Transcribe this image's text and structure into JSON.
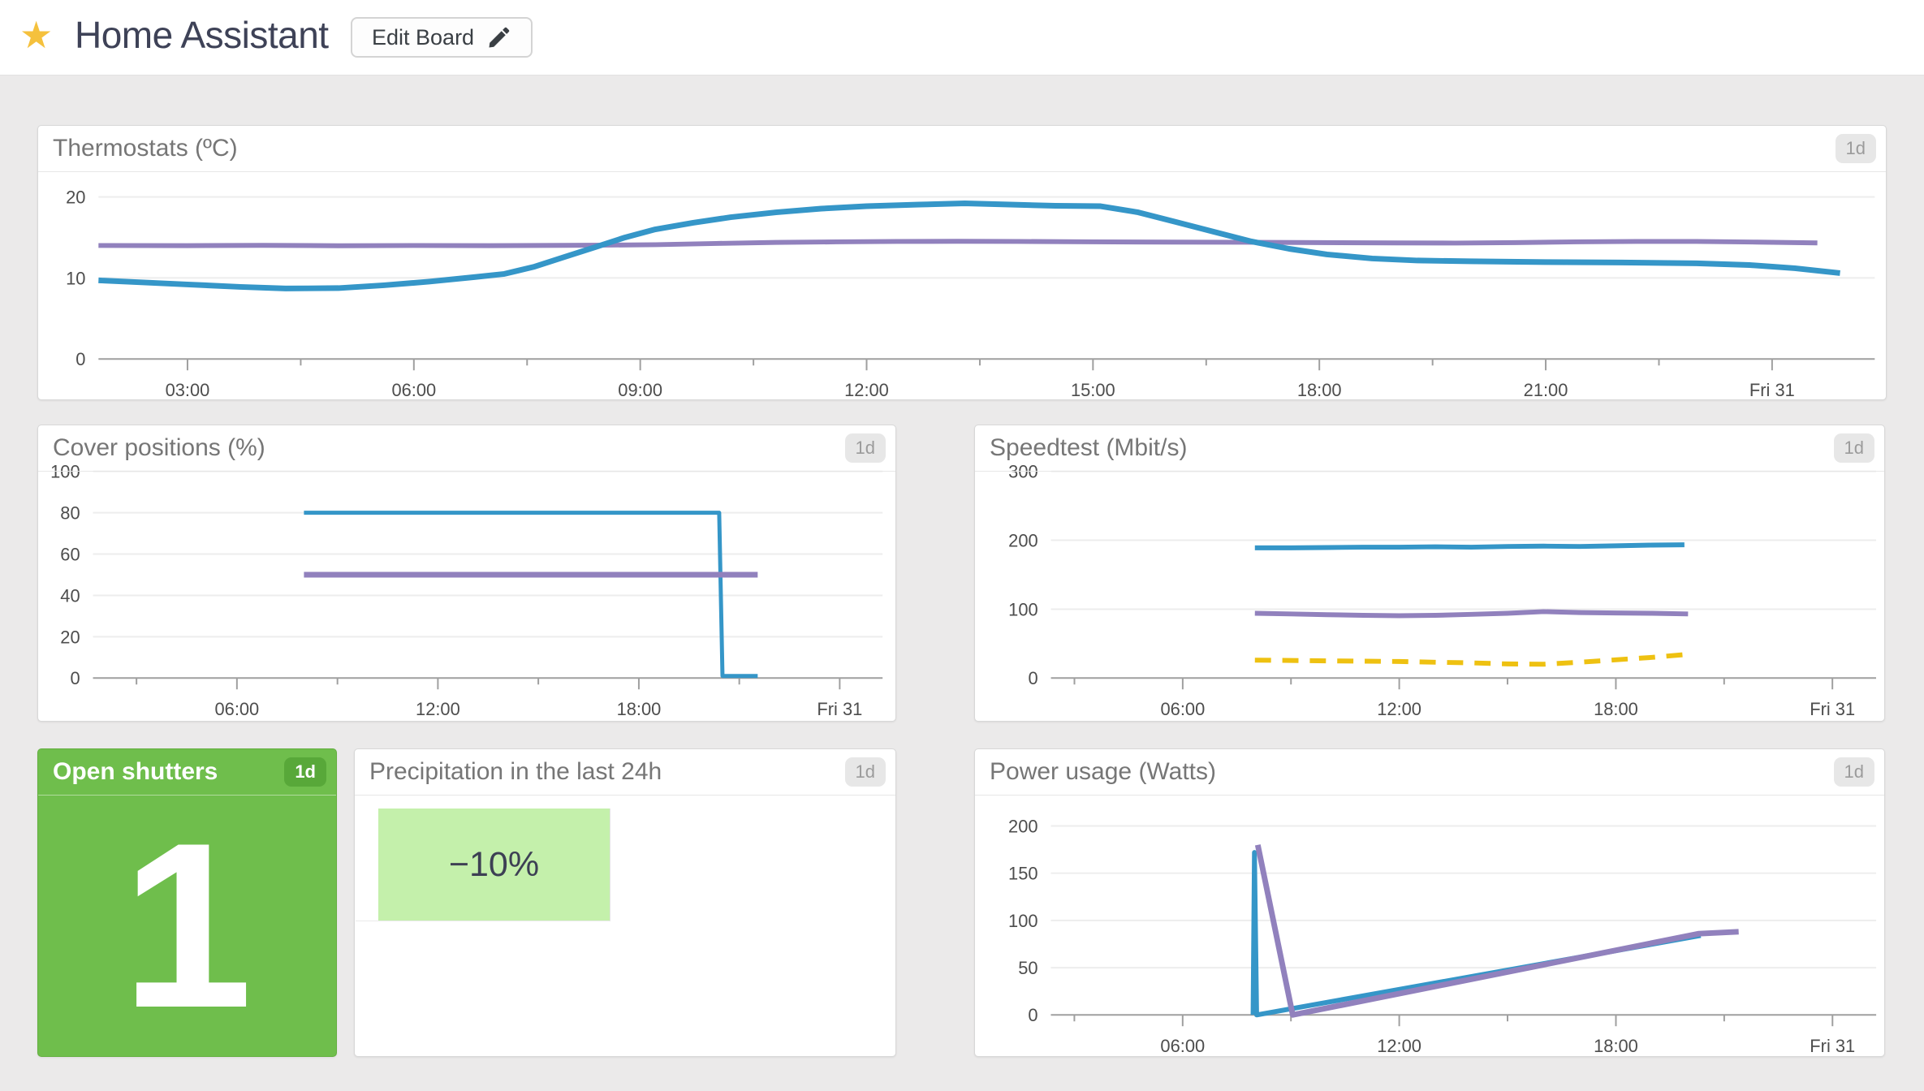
{
  "colors": {
    "blue": "#3596c8",
    "purple": "#9181bd",
    "yellow": "#eec111",
    "tile_green": "#6fbe4c",
    "cell_green": "#c4f0ab",
    "star_gold": "#f5c13d"
  },
  "header": {
    "title": "Home Assistant",
    "edit_label": "Edit Board",
    "star_icon": "★"
  },
  "panels": {
    "thermostats": {
      "title": "Thermostats (ºC)",
      "range_badge": "1d",
      "chart": {
        "type": "line",
        "x_range": [
          1.82,
          25.36
        ],
        "y_range": [
          0,
          21.4
        ],
        "y_ticks": [
          {
            "v": 0,
            "label": "0"
          },
          {
            "v": 10,
            "label": "10"
          },
          {
            "v": 20,
            "label": "20"
          }
        ],
        "x_ticks": [
          {
            "h": 3,
            "label": "03:00"
          },
          {
            "h": 6,
            "label": "06:00"
          },
          {
            "h": 9,
            "label": "09:00"
          },
          {
            "h": 12,
            "label": "12:00"
          },
          {
            "h": 15,
            "label": "15:00"
          },
          {
            "h": 18,
            "label": "18:00"
          },
          {
            "h": 21,
            "label": "21:00"
          },
          {
            "h": 24,
            "label": "Fri 31"
          }
        ],
        "x_minor": [
          4.5,
          7.5,
          10.5,
          13.5,
          16.5,
          19.5,
          22.5
        ],
        "series": [
          {
            "name": "thermostat-setpoint",
            "color": "#9181bd",
            "width": 6,
            "points": [
              [
                1.82,
                14.0
              ],
              [
                3,
                13.98
              ],
              [
                4,
                14.02
              ],
              [
                5,
                13.97
              ],
              [
                6,
                14.0
              ],
              [
                7,
                13.98
              ],
              [
                8,
                14.02
              ],
              [
                8.6,
                14.05
              ],
              [
                9.2,
                14.1
              ],
              [
                10,
                14.25
              ],
              [
                10.8,
                14.38
              ],
              [
                11.6,
                14.45
              ],
              [
                12.4,
                14.5
              ],
              [
                13.2,
                14.52
              ],
              [
                14,
                14.5
              ],
              [
                15,
                14.45
              ],
              [
                16,
                14.42
              ],
              [
                17,
                14.4
              ],
              [
                18,
                14.36
              ],
              [
                19,
                14.32
              ],
              [
                19.8,
                14.3
              ],
              [
                20.6,
                14.36
              ],
              [
                21.4,
                14.45
              ],
              [
                22.2,
                14.5
              ],
              [
                23,
                14.5
              ],
              [
                23.8,
                14.42
              ],
              [
                24.6,
                14.32
              ]
            ]
          },
          {
            "name": "temperature",
            "color": "#3596c8",
            "width": 7,
            "points": [
              [
                1.82,
                9.7
              ],
              [
                2.3,
                9.5
              ],
              [
                3,
                9.2
              ],
              [
                3.7,
                8.9
              ],
              [
                4.3,
                8.7
              ],
              [
                5,
                8.75
              ],
              [
                5.6,
                9.1
              ],
              [
                6.2,
                9.55
              ],
              [
                6.8,
                10.1
              ],
              [
                7.2,
                10.5
              ],
              [
                7.6,
                11.4
              ],
              [
                8,
                12.6
              ],
              [
                8.4,
                13.8
              ],
              [
                8.8,
                15.0
              ],
              [
                9.2,
                16.0
              ],
              [
                9.7,
                16.8
              ],
              [
                10.2,
                17.5
              ],
              [
                10.8,
                18.1
              ],
              [
                11.4,
                18.55
              ],
              [
                12,
                18.85
              ],
              [
                12.7,
                19.05
              ],
              [
                13.3,
                19.2
              ],
              [
                13.9,
                19.05
              ],
              [
                14.5,
                18.9
              ],
              [
                15.1,
                18.85
              ],
              [
                15.6,
                18.1
              ],
              [
                16.1,
                16.9
              ],
              [
                16.6,
                15.7
              ],
              [
                17.1,
                14.5
              ],
              [
                17.6,
                13.6
              ],
              [
                18.1,
                12.9
              ],
              [
                18.7,
                12.4
              ],
              [
                19.3,
                12.15
              ],
              [
                20,
                12.05
              ],
              [
                21,
                11.95
              ],
              [
                22,
                11.9
              ],
              [
                23,
                11.8
              ],
              [
                23.7,
                11.6
              ],
              [
                24.3,
                11.2
              ],
              [
                24.9,
                10.6
              ]
            ]
          }
        ]
      }
    },
    "cover": {
      "title": "Cover positions (%)",
      "range_badge": "1d",
      "chart": {
        "type": "line",
        "x_range": [
          1.7,
          25.28
        ],
        "y_range": [
          0,
          100
        ],
        "y_ticks": [
          {
            "v": 0,
            "label": "0"
          },
          {
            "v": 20,
            "label": "20"
          },
          {
            "v": 40,
            "label": "40"
          },
          {
            "v": 60,
            "label": "60"
          },
          {
            "v": 80,
            "label": "80"
          },
          {
            "v": 100,
            "label": "100"
          }
        ],
        "x_ticks": [
          {
            "h": 6,
            "label": "06:00"
          },
          {
            "h": 12,
            "label": "12:00"
          },
          {
            "h": 18,
            "label": "18:00"
          },
          {
            "h": 24,
            "label": "Fri 31"
          }
        ],
        "x_minor": [
          3,
          9,
          15,
          21
        ],
        "series": [
          {
            "name": "cover-living-room",
            "color": "#3596c8",
            "width": 5,
            "points": [
              [
                8,
                80
              ],
              [
                20.4,
                80
              ],
              [
                20.5,
                1
              ],
              [
                21.55,
                1
              ]
            ]
          },
          {
            "name": "cover-bedroom",
            "color": "#9181bd",
            "width": 7,
            "points": [
              [
                8,
                50
              ],
              [
                21.55,
                50
              ]
            ]
          }
        ]
      }
    },
    "speedtest": {
      "title": "Speedtest (Mbit/s)",
      "range_badge": "1d",
      "chart": {
        "type": "line",
        "x_range": [
          2.35,
          25.21
        ],
        "y_range": [
          0,
          300
        ],
        "y_ticks": [
          {
            "v": 0,
            "label": "0"
          },
          {
            "v": 100,
            "label": "100"
          },
          {
            "v": 200,
            "label": "200"
          },
          {
            "v": 300,
            "label": "300"
          }
        ],
        "x_ticks": [
          {
            "h": 6,
            "label": "06:00"
          },
          {
            "h": 12,
            "label": "12:00"
          },
          {
            "h": 18,
            "label": "18:00"
          },
          {
            "h": 24,
            "label": "Fri 31"
          }
        ],
        "x_minor": [
          3,
          9,
          15,
          21
        ],
        "series": [
          {
            "name": "download",
            "color": "#3596c8",
            "width": 6,
            "points": [
              [
                8,
                189
              ],
              [
                9,
                189
              ],
              [
                10,
                189.5
              ],
              [
                11,
                190
              ],
              [
                12,
                190
              ],
              [
                13,
                190.5
              ],
              [
                14,
                190
              ],
              [
                15,
                191
              ],
              [
                16,
                191.5
              ],
              [
                17,
                191
              ],
              [
                18,
                192
              ],
              [
                19,
                193
              ],
              [
                19.9,
                193.5
              ]
            ]
          },
          {
            "name": "upload",
            "color": "#9181bd",
            "width": 6,
            "points": [
              [
                8,
                94
              ],
              [
                9,
                93
              ],
              [
                10,
                92
              ],
              [
                11,
                91
              ],
              [
                12,
                90.5
              ],
              [
                13,
                91
              ],
              [
                14,
                92.5
              ],
              [
                15,
                94
              ],
              [
                16,
                96.5
              ],
              [
                17,
                95
              ],
              [
                18,
                94.5
              ],
              [
                19,
                94
              ],
              [
                20,
                93
              ]
            ]
          },
          {
            "name": "ping",
            "color": "#eec111",
            "width": 6,
            "dash": "20 14",
            "points": [
              [
                8,
                26
              ],
              [
                9,
                25.5
              ],
              [
                10,
                25
              ],
              [
                11,
                24.5
              ],
              [
                12,
                24
              ],
              [
                13,
                23
              ],
              [
                14,
                22
              ],
              [
                15,
                20.5
              ],
              [
                16,
                20
              ],
              [
                17,
                23
              ],
              [
                18,
                26.5
              ],
              [
                19,
                30
              ],
              [
                20,
                34.5
              ]
            ]
          }
        ]
      }
    },
    "shutters": {
      "title": "Open shutters",
      "range_badge": "1d",
      "value": "1"
    },
    "precipitation": {
      "title": "Precipitation in the last 24h",
      "range_badge": "1d",
      "value": "−10%"
    },
    "power": {
      "title": "Power usage (Watts)",
      "range_badge": "1d",
      "chart": {
        "type": "line",
        "x_range": [
          2.35,
          25.21
        ],
        "y_range": [
          0,
          206
        ],
        "y_ticks": [
          {
            "v": 0,
            "label": "0"
          },
          {
            "v": 50,
            "label": "50"
          },
          {
            "v": 100,
            "label": "100"
          },
          {
            "v": 150,
            "label": "150"
          },
          {
            "v": 200,
            "label": "200"
          }
        ],
        "x_ticks": [
          {
            "h": 6,
            "label": "06:00"
          },
          {
            "h": 12,
            "label": "12:00"
          },
          {
            "h": 18,
            "label": "18:00"
          },
          {
            "h": 24,
            "label": "Fri 31"
          }
        ],
        "x_minor": [
          3,
          9,
          15,
          21
        ],
        "series": [
          {
            "name": "power-meter-1",
            "color": "#3596c8",
            "width": 6,
            "points": [
              [
                7.95,
                0
              ],
              [
                7.99,
                172
              ],
              [
                8.05,
                0
              ],
              [
                20.35,
                84
              ]
            ]
          },
          {
            "name": "power-meter-2",
            "color": "#9181bd",
            "width": 7,
            "points": [
              [
                8.08,
                180
              ],
              [
                9.05,
                0
              ],
              [
                20.3,
                86
              ],
              [
                21.4,
                88
              ]
            ]
          }
        ]
      }
    }
  }
}
